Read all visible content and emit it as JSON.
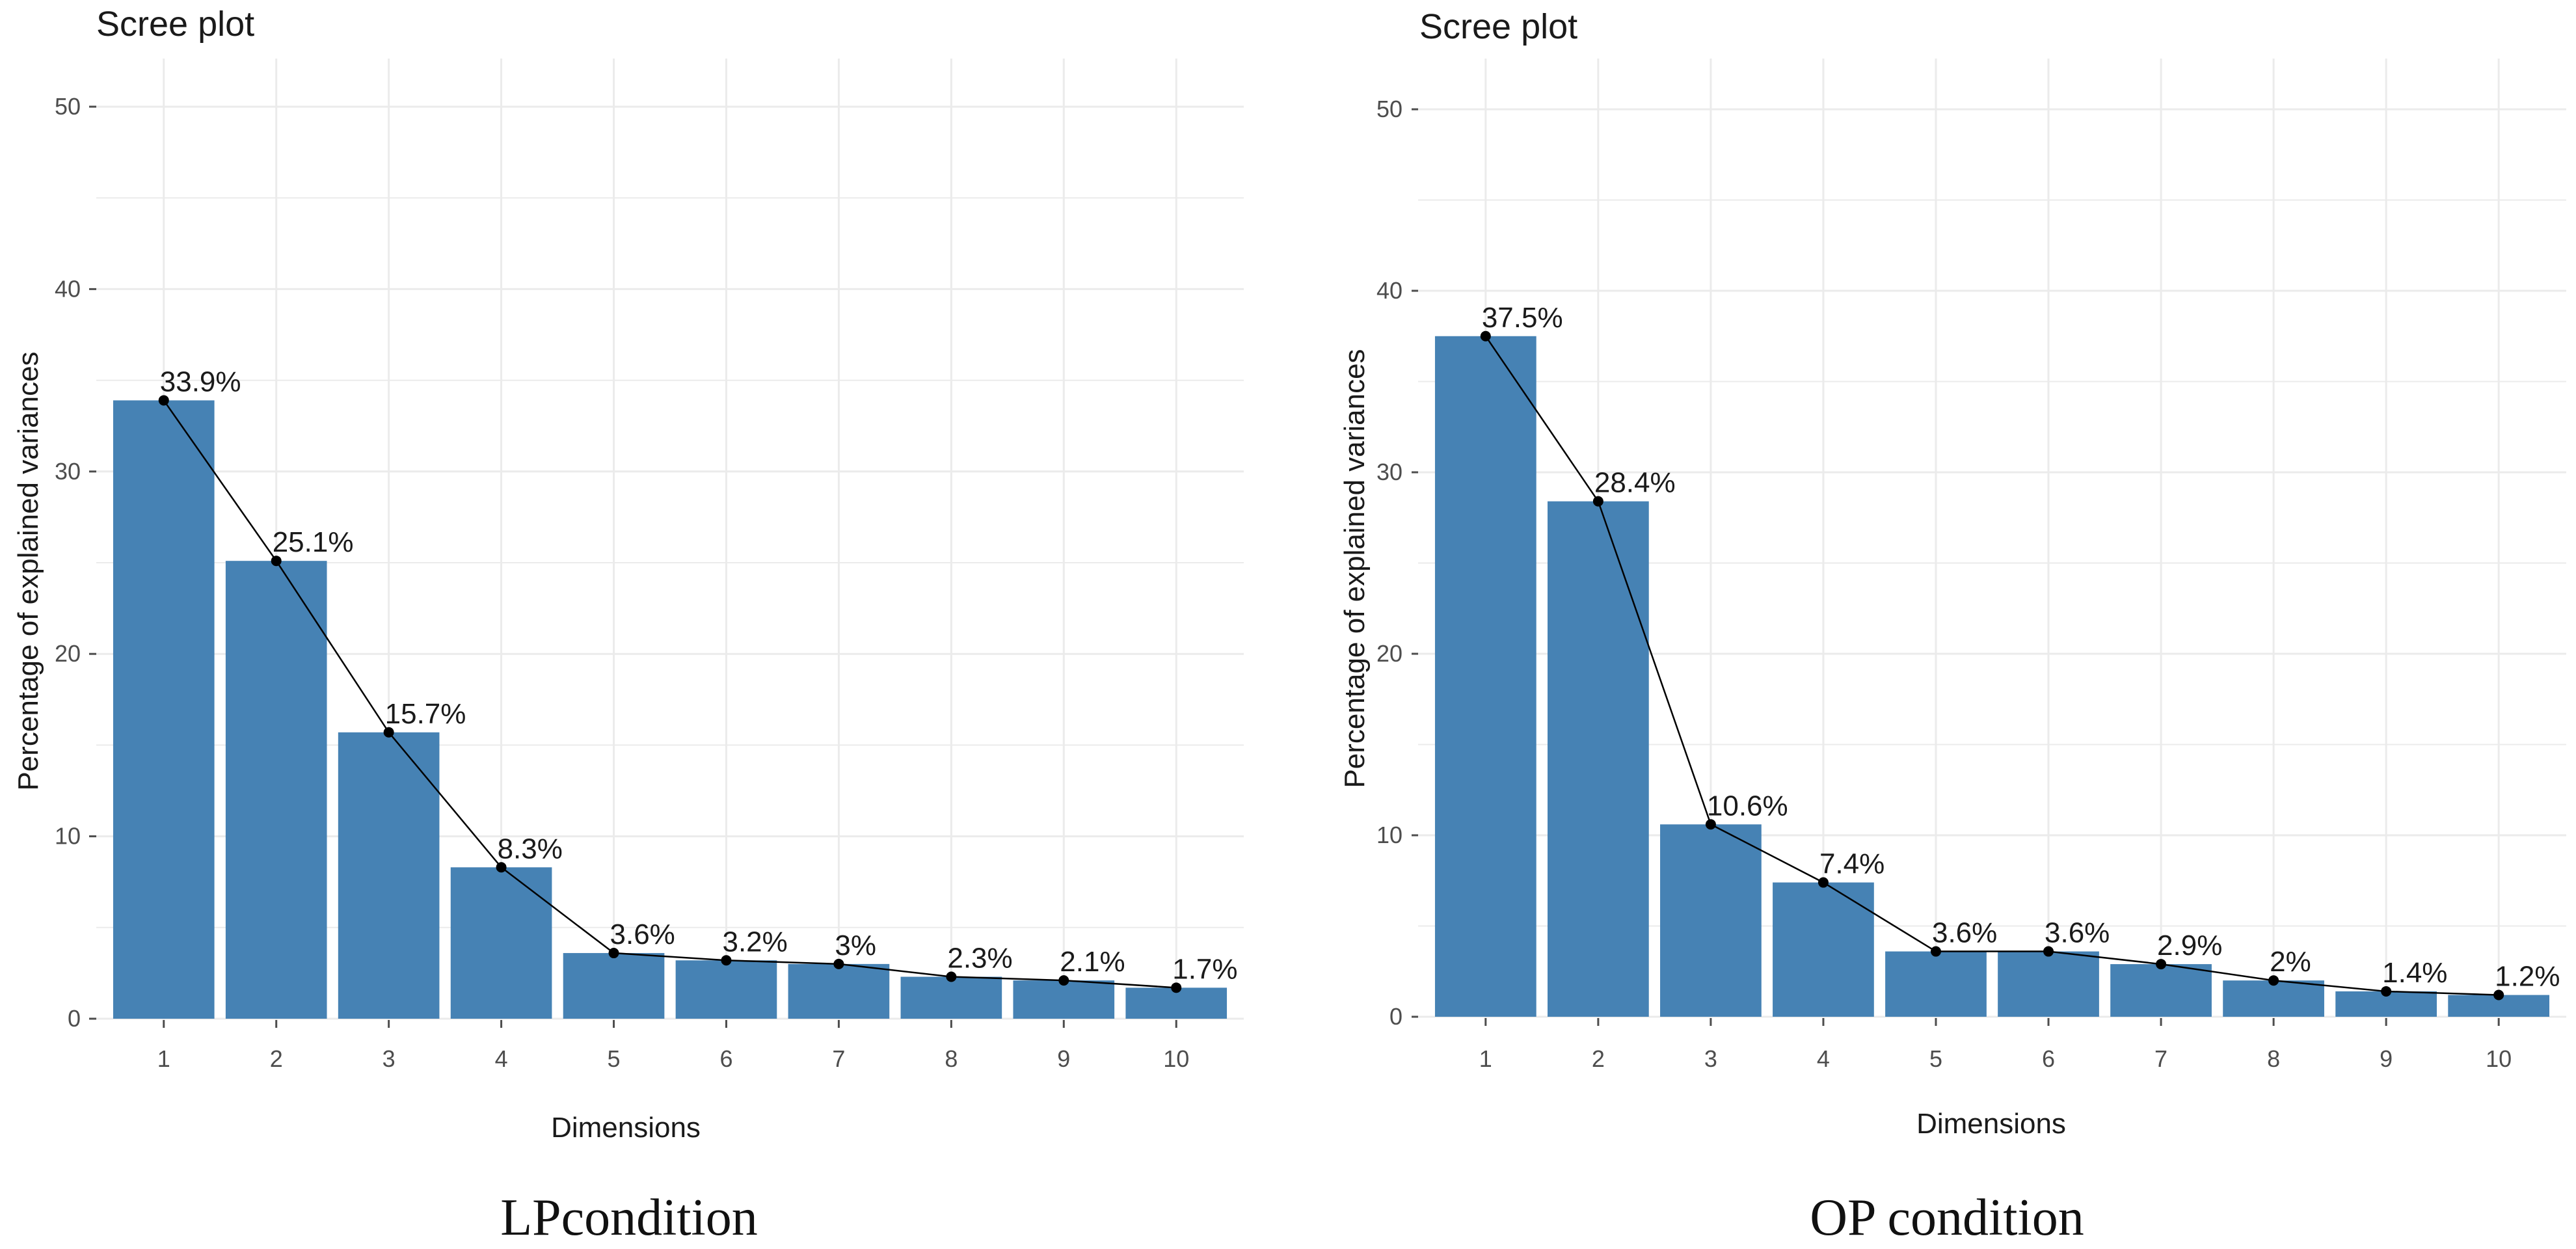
{
  "chart_data": [
    {
      "type": "bar",
      "title": "Scree plot",
      "xlabel": "Dimensions",
      "ylabel": "Percentage of explained variances",
      "caption": "LPcondition",
      "categories": [
        "1",
        "2",
        "3",
        "4",
        "5",
        "6",
        "7",
        "8",
        "9",
        "10"
      ],
      "values": [
        33.9,
        25.1,
        15.7,
        8.3,
        3.6,
        3.2,
        3.0,
        2.3,
        2.1,
        1.7
      ],
      "data_labels": [
        "33.9%",
        "25.1%",
        "15.7%",
        "8.3%",
        "3.6%",
        "3.2%",
        "3%",
        "2.3%",
        "2.1%",
        "1.7%"
      ],
      "yticks": [
        "0",
        "10",
        "20",
        "30",
        "40",
        "50"
      ],
      "ylim": [
        0,
        50
      ],
      "line_overlay": true,
      "grid": true
    },
    {
      "type": "bar",
      "title": "Scree plot",
      "xlabel": "Dimensions",
      "ylabel": "Percentage of explained variances",
      "caption": "OP condition",
      "categories": [
        "1",
        "2",
        "3",
        "4",
        "5",
        "6",
        "7",
        "8",
        "9",
        "10"
      ],
      "values": [
        37.5,
        28.4,
        10.6,
        7.4,
        3.6,
        3.6,
        2.9,
        2.0,
        1.4,
        1.2
      ],
      "data_labels": [
        "37.5%",
        "28.4%",
        "10.6%",
        "7.4%",
        "3.6%",
        "3.6%",
        "2.9%",
        "2%",
        "1.4%",
        "1.2%"
      ],
      "yticks": [
        "0",
        "10",
        "20",
        "30",
        "40",
        "50"
      ],
      "ylim": [
        0,
        50
      ],
      "line_overlay": true,
      "grid": true
    }
  ],
  "colors": {
    "bar": "#4682B4",
    "line": "#000000",
    "grid": "#ebebeb",
    "tick": "#4d4d4d",
    "text": "#1a1a1a"
  }
}
